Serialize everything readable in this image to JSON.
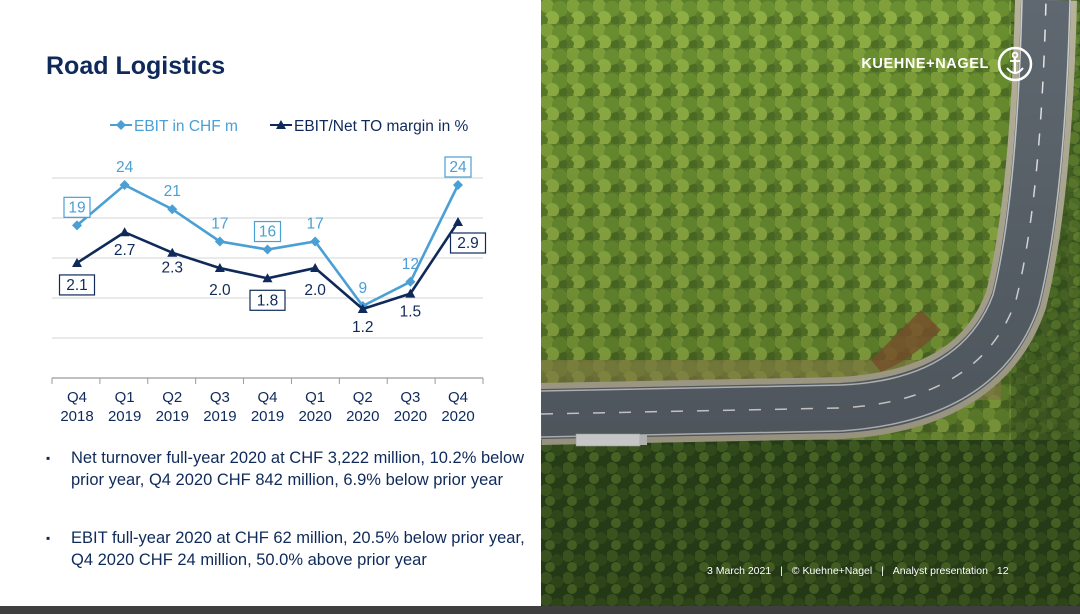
{
  "slide": {
    "title": "Road Logistics",
    "bullets": [
      "Net turnover full-year 2020 at CHF 3,222 million, 10.2% below prior year, Q4 2020 CHF 842 million, 6.9% below prior year",
      "EBIT full-year 2020 at CHF 62 million, 20.5% below prior year, Q4 2020 CHF 24 million, 50.0% above prior year"
    ],
    "bullet_symbol": "▪",
    "brand": "KUEHNE+NAGEL",
    "footer": {
      "date": "3 March 2021",
      "sep": "|",
      "copyright": "© Kuehne+Nagel",
      "event": "Analyst presentation",
      "page": "12"
    },
    "colors": {
      "title": "#0f2a5a",
      "ebit": "#4a9fd4",
      "margin": "#0f2a5a"
    }
  },
  "chart_data": {
    "type": "line",
    "categories": [
      [
        "Q4",
        "2018"
      ],
      [
        "Q1",
        "2019"
      ],
      [
        "Q2",
        "2019"
      ],
      [
        "Q3",
        "2019"
      ],
      [
        "Q4",
        "2019"
      ],
      [
        "Q1",
        "2020"
      ],
      [
        "Q2",
        "2020"
      ],
      [
        "Q3",
        "2020"
      ],
      [
        "Q4",
        "2020"
      ]
    ],
    "series": [
      {
        "name": "EBIT in CHF m",
        "values": [
          19,
          24,
          21,
          17,
          16,
          17,
          9,
          12,
          24
        ],
        "boxed": [
          0,
          4,
          8
        ],
        "marker": "diamond",
        "color": "#4a9fd4"
      },
      {
        "name": "EBIT/Net TO margin in %",
        "values": [
          2.1,
          2.7,
          2.3,
          2.0,
          1.8,
          2.0,
          1.2,
          1.5,
          2.9
        ],
        "labels": [
          "2.1",
          "2.7",
          "2.3",
          "2.0",
          "1.8",
          "2.0",
          "1.2",
          "1.5",
          "2.9"
        ],
        "boxed": [
          0,
          4,
          8
        ],
        "marker": "triangle",
        "color": "#0f2a5a"
      }
    ],
    "legend": "top",
    "grid": true
  }
}
